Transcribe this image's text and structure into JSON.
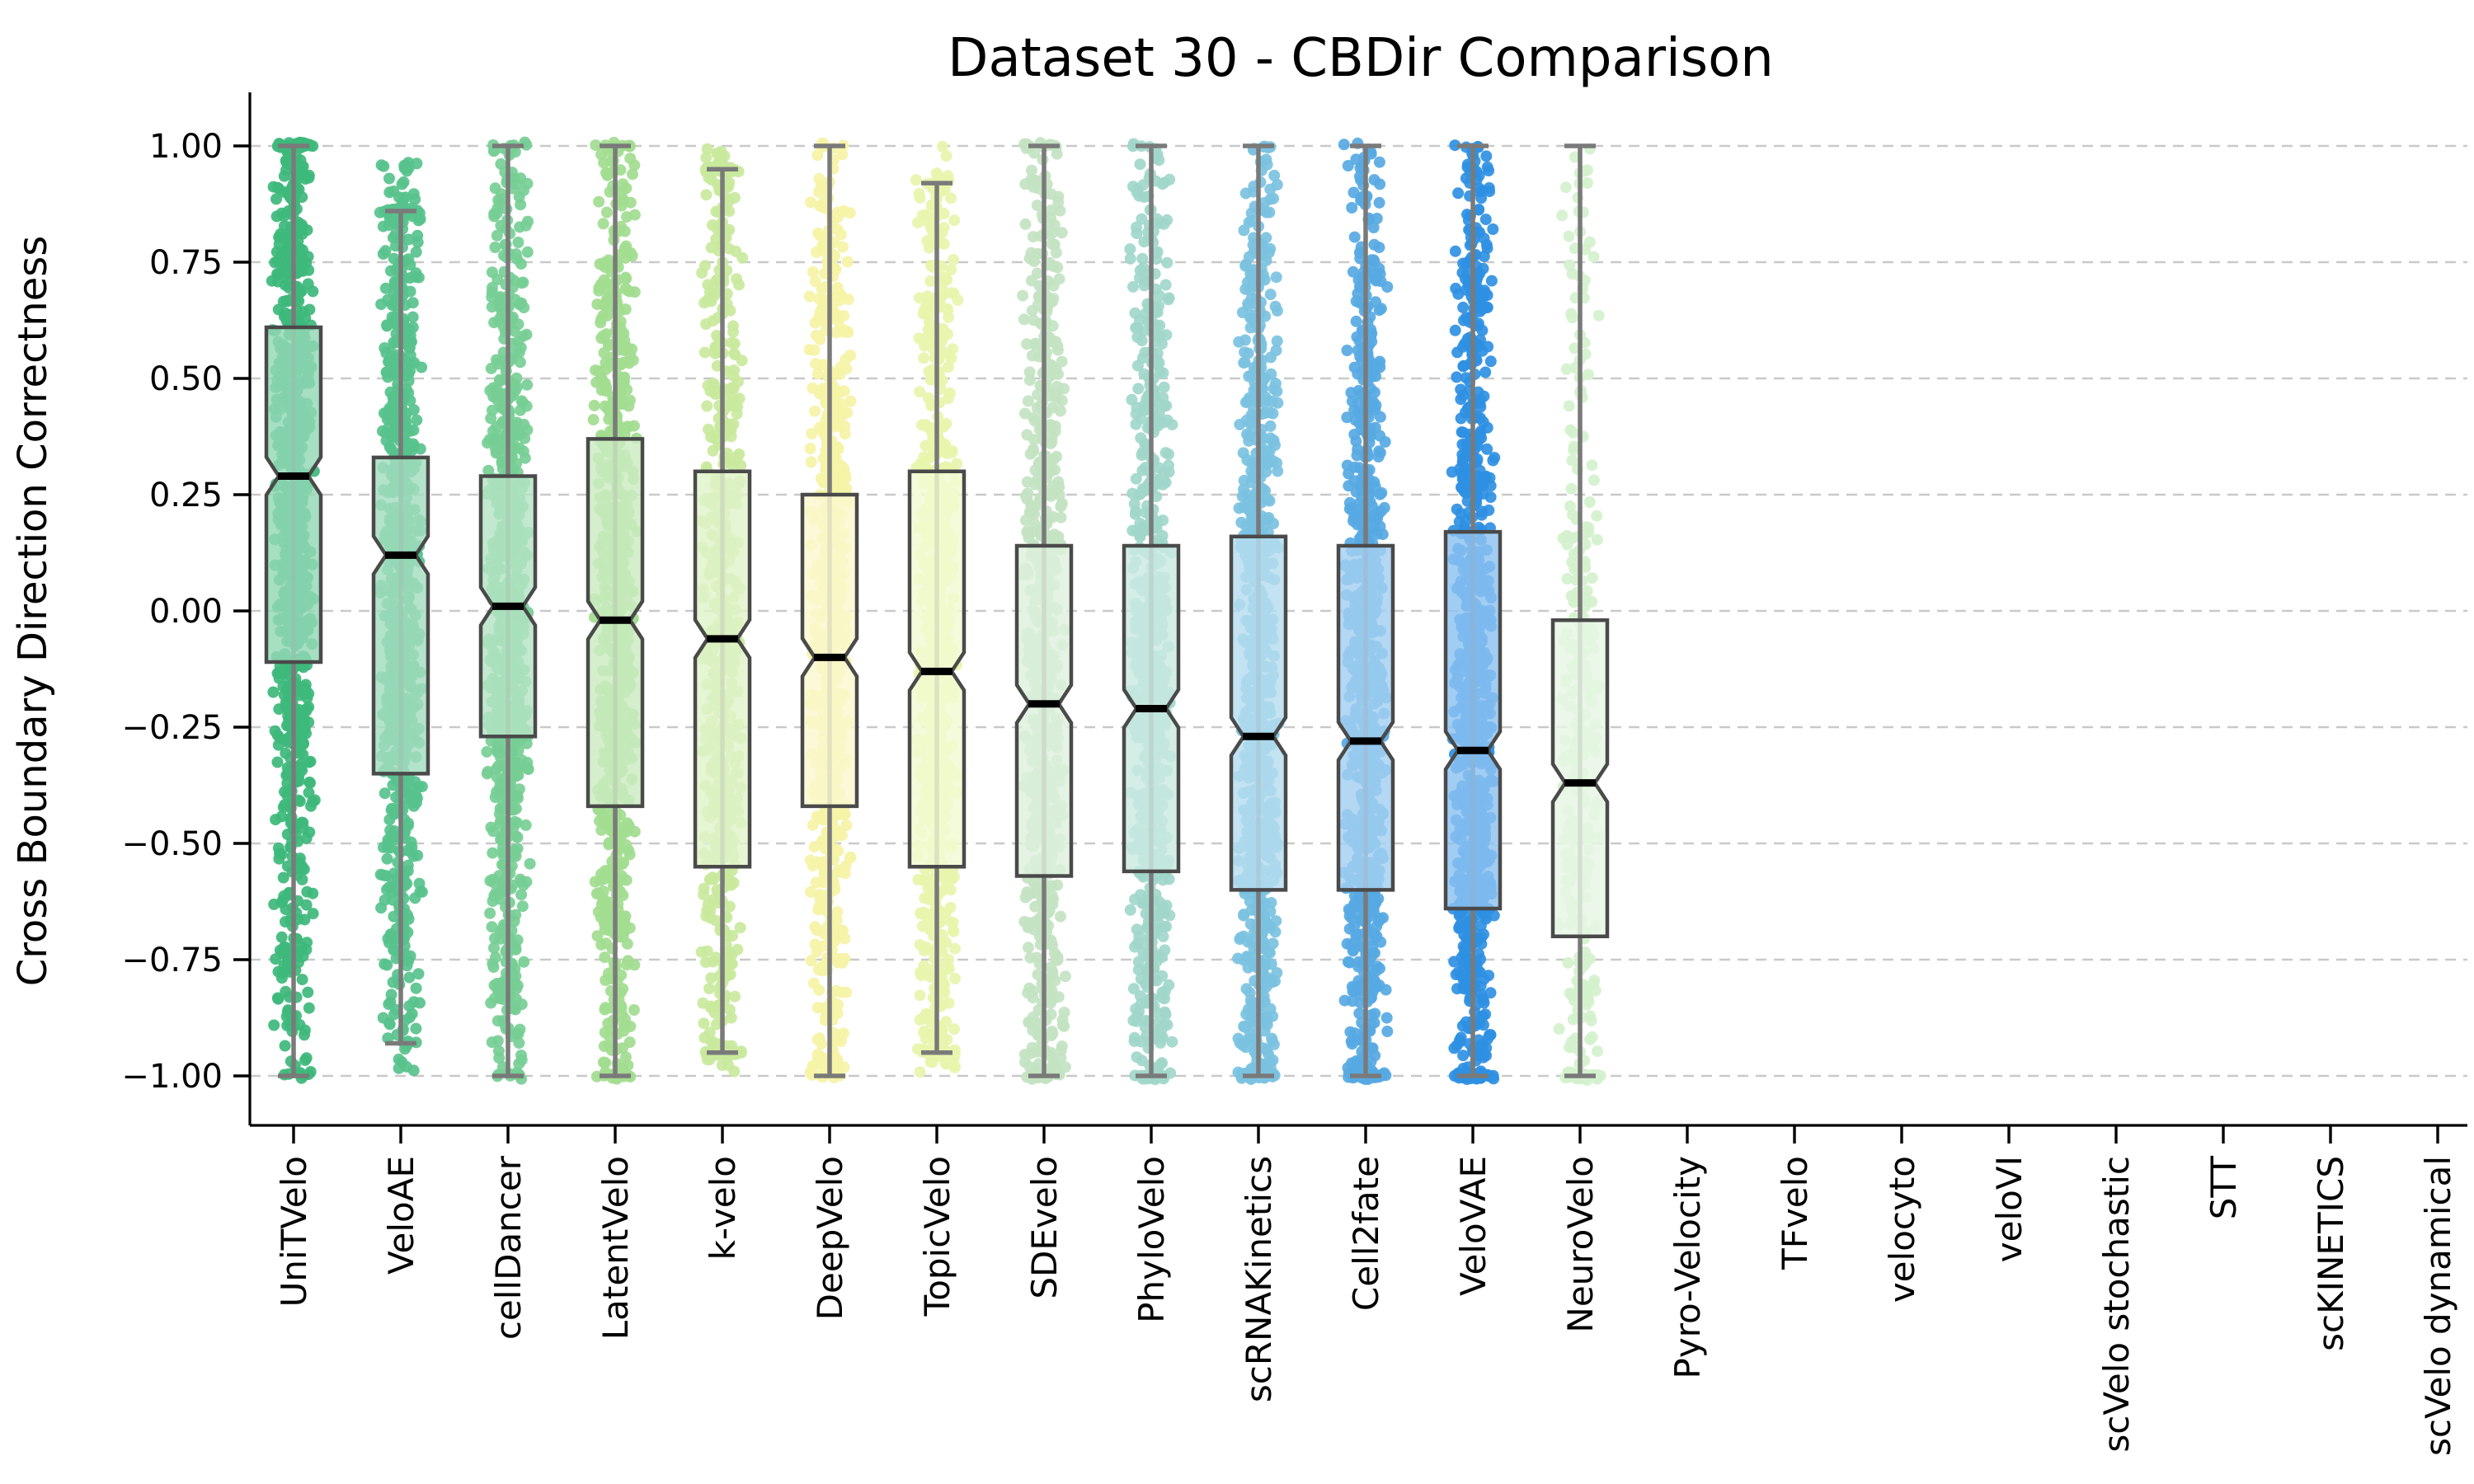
{
  "chart_data": {
    "type": "box+strip",
    "title": "Dataset 30 - CBDir Comparison",
    "ylabel": "Cross Boundary Direction Correctness",
    "ylim": [
      -1.12,
      1.12
    ],
    "grid": "horizontal-dashed",
    "legend": "none",
    "yticks": [
      {
        "v": 1.0,
        "label": "1.00"
      },
      {
        "v": 0.75,
        "label": "0.75"
      },
      {
        "v": 0.5,
        "label": "0.50"
      },
      {
        "v": 0.25,
        "label": "0.25"
      },
      {
        "v": 0.0,
        "label": "0.00"
      },
      {
        "v": -0.25,
        "label": "−0.25"
      },
      {
        "v": -0.5,
        "label": "−0.50"
      },
      {
        "v": -0.75,
        "label": "−0.75"
      },
      {
        "v": -1.0,
        "label": "−1.00"
      }
    ],
    "categories": [
      "UniTVelo",
      "VeloAE",
      "cellDancer",
      "LatentVelo",
      "k-velo",
      "DeepVelo",
      "TopicVelo",
      "SDEvelo",
      "PhyloVelo",
      "scRNAKinetics",
      "Cell2fate",
      "VeloVAE",
      "NeuroVelo",
      "Pyro-Velocity",
      "TFvelo",
      "velocyto",
      "veloVI",
      "scVelo stochastic",
      "STT",
      "scKINETICS",
      "scVelo dynamical"
    ],
    "series": [
      {
        "label": "UniTVelo",
        "has_data": true,
        "color": "#3db87b",
        "whisker_low": -1.0,
        "q1": -0.11,
        "median": 0.29,
        "q3": 0.61,
        "whisker_high": 1.0,
        "n_points": 850
      },
      {
        "label": "VeloAE",
        "has_data": true,
        "color": "#57c28c",
        "whisker_low": -0.93,
        "q1": -0.35,
        "median": 0.12,
        "q3": 0.33,
        "whisker_high": 0.86,
        "n_points": 800
      },
      {
        "label": "cellDancer",
        "has_data": true,
        "color": "#77ce95",
        "whisker_low": -1.0,
        "q1": -0.27,
        "median": 0.01,
        "q3": 0.29,
        "whisker_high": 1.0,
        "n_points": 820
      },
      {
        "label": "LatentVelo",
        "has_data": true,
        "color": "#a2dc90",
        "whisker_low": -1.0,
        "q1": -0.42,
        "median": -0.02,
        "q3": 0.37,
        "whisker_high": 1.0,
        "n_points": 700
      },
      {
        "label": "k-velo",
        "has_data": true,
        "color": "#c9e99d",
        "whisker_low": -0.95,
        "q1": -0.55,
        "median": -0.06,
        "q3": 0.3,
        "whisker_high": 0.95,
        "n_points": 600
      },
      {
        "label": "DeepVelo",
        "has_data": true,
        "color": "#f5f3a6",
        "whisker_low": -1.0,
        "q1": -0.42,
        "median": -0.1,
        "q3": 0.25,
        "whisker_high": 1.0,
        "n_points": 650
      },
      {
        "label": "TopicVelo",
        "has_data": true,
        "color": "#e7f5ad",
        "whisker_low": -0.95,
        "q1": -0.55,
        "median": -0.13,
        "q3": 0.3,
        "whisker_high": 0.92,
        "n_points": 650
      },
      {
        "label": "SDEvelo",
        "has_data": true,
        "color": "#c3e3c2",
        "whisker_low": -1.0,
        "q1": -0.57,
        "median": -0.2,
        "q3": 0.14,
        "whisker_high": 1.0,
        "n_points": 700
      },
      {
        "label": "PhyloVelo",
        "has_data": true,
        "color": "#a1d7cb",
        "whisker_low": -1.0,
        "q1": -0.56,
        "median": -0.21,
        "q3": 0.14,
        "whisker_high": 1.0,
        "n_points": 700
      },
      {
        "label": "scRNAKinetics",
        "has_data": true,
        "color": "#7bc2e1",
        "whisker_low": -1.0,
        "q1": -0.6,
        "median": -0.27,
        "q3": 0.16,
        "whisker_high": 1.0,
        "n_points": 800
      },
      {
        "label": "Cell2fate",
        "has_data": true,
        "color": "#57a9e3",
        "whisker_low": -1.0,
        "q1": -0.6,
        "median": -0.28,
        "q3": 0.14,
        "whisker_high": 1.0,
        "n_points": 800
      },
      {
        "label": "VeloVAE",
        "has_data": true,
        "color": "#2f90e3",
        "whisker_low": -1.0,
        "q1": -0.64,
        "median": -0.3,
        "q3": 0.17,
        "whisker_high": 1.0,
        "n_points": 850
      },
      {
        "label": "NeuroVelo",
        "has_data": true,
        "color": "#d4f1cd",
        "whisker_low": -1.0,
        "q1": -0.7,
        "median": -0.37,
        "q3": -0.02,
        "whisker_high": 1.0,
        "n_points": 300
      },
      {
        "label": "Pyro-Velocity",
        "has_data": false
      },
      {
        "label": "TFvelo",
        "has_data": false
      },
      {
        "label": "velocyto",
        "has_data": false
      },
      {
        "label": "veloVI",
        "has_data": false
      },
      {
        "label": "scVelo stochastic",
        "has_data": false
      },
      {
        "label": "STT",
        "has_data": false
      },
      {
        "label": "scKINETICS",
        "has_data": false
      },
      {
        "label": "scVelo dynamical",
        "has_data": false
      }
    ],
    "style_colors": {
      "box_edge": "#4a4a4a",
      "median": "#000000",
      "whisker": "#7a7a7a",
      "grid": "#c9c9c9"
    }
  }
}
